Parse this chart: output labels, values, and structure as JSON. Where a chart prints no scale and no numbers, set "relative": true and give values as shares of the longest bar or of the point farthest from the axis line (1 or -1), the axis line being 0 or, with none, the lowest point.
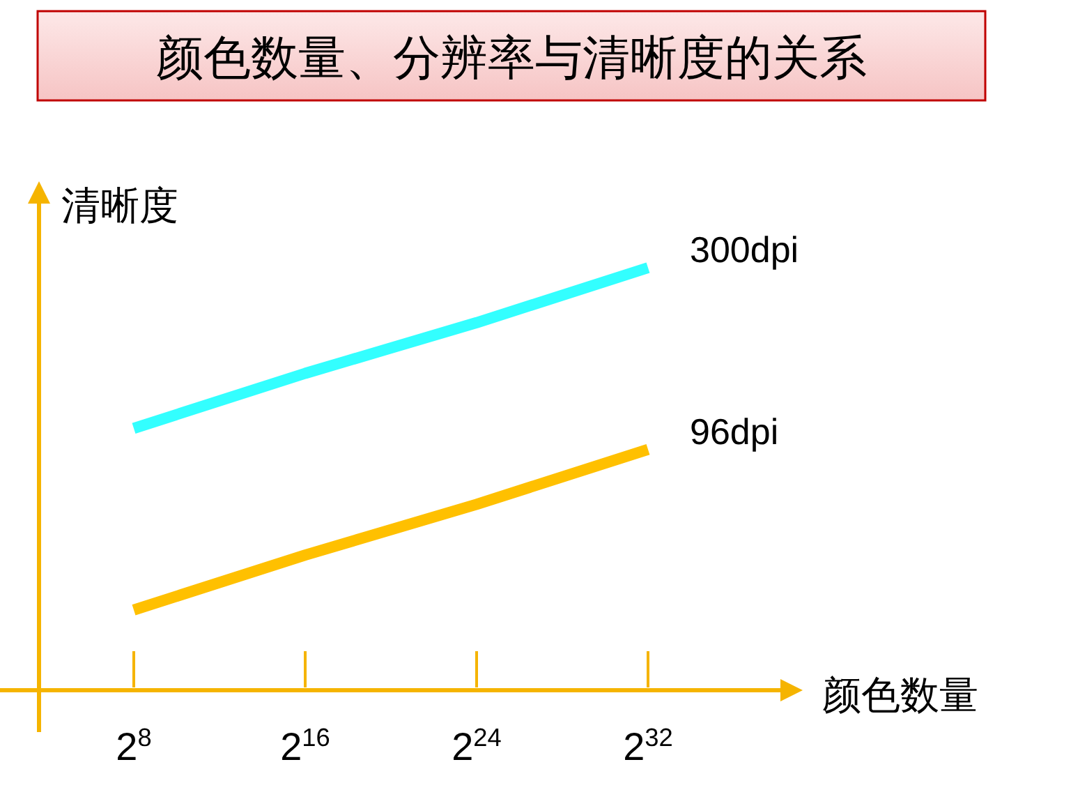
{
  "chart_data": {
    "type": "line",
    "title": "颜色数量、分辨率与清晰度的关系",
    "xlabel": "颜色数量",
    "ylabel": "清晰度",
    "relative": true,
    "categories": [
      "2$^{8}$",
      "2$^{16}$",
      "2$^{24}$",
      "2$^{32}$"
    ],
    "series": [
      {
        "name": "300dpi",
        "color": "#33ffff",
        "values": [
          0.62,
          0.75,
          0.87,
          1.0
        ]
      },
      {
        "name": "96dpi",
        "color": "#ffc000",
        "values": [
          0.19,
          0.32,
          0.44,
          0.57
        ]
      }
    ]
  }
}
